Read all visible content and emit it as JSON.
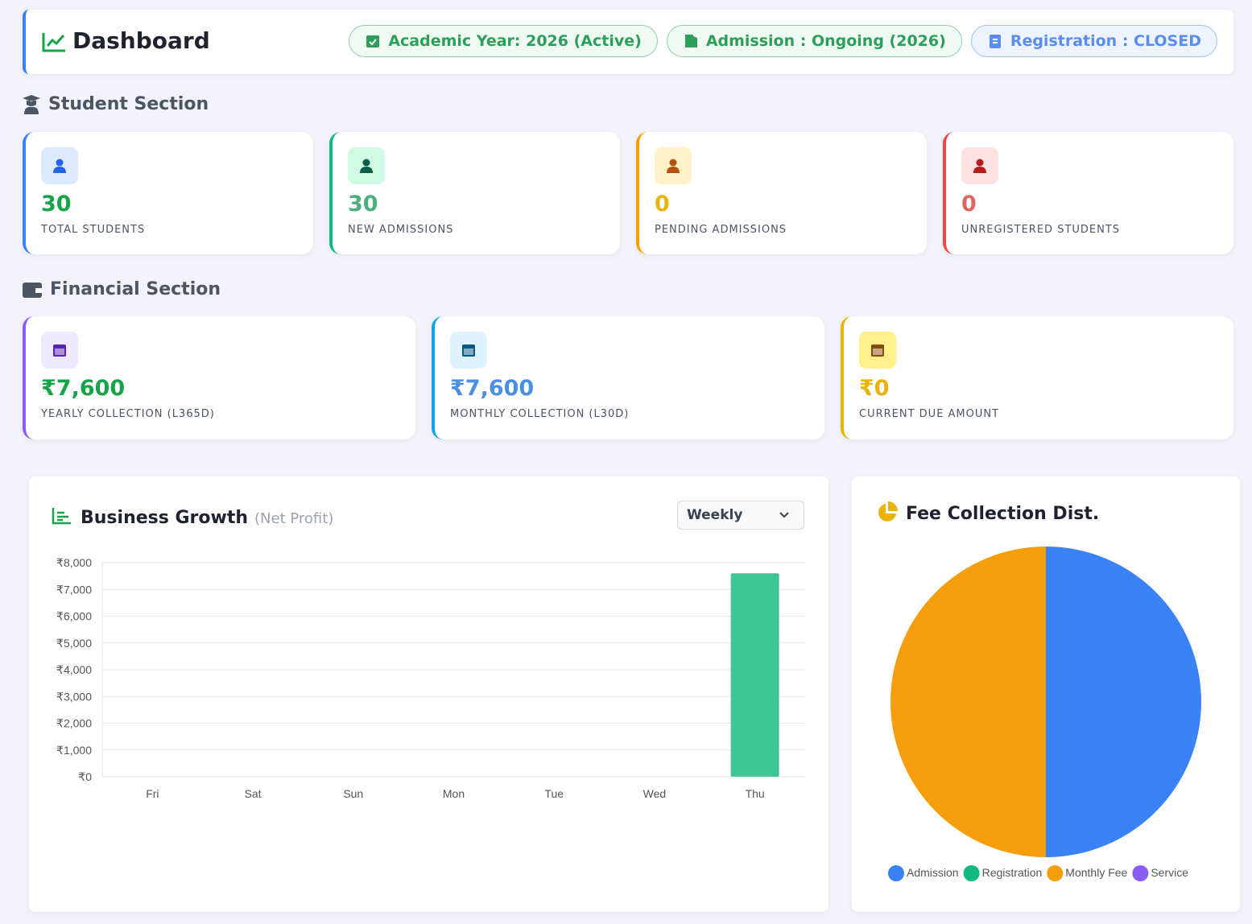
{
  "header": {
    "title": "Dashboard",
    "badges": [
      "Academic Year: 2026 (Active)",
      "Admission : Ongoing (2026)",
      "Registration : CLOSED"
    ]
  },
  "student_section": {
    "title": "Student Section",
    "cards": [
      {
        "value": "30",
        "label": "TOTAL STUDENTS"
      },
      {
        "value": "30",
        "label": "NEW ADMISSIONS"
      },
      {
        "value": "0",
        "label": "PENDING ADMISSIONS"
      },
      {
        "value": "0",
        "label": "UNREGISTERED STUDENTS"
      }
    ]
  },
  "financial_section": {
    "title": "Financial Section",
    "cards": [
      {
        "value": "₹7,600",
        "label": "YEARLY COLLECTION (L365D)"
      },
      {
        "value": "₹7,600",
        "label": "MONTHLY COLLECTION (L30D)"
      },
      {
        "value": "₹0",
        "label": "CURRENT DUE AMOUNT"
      }
    ]
  },
  "period_filter": "Weekly",
  "chart_data": [
    {
      "type": "bar",
      "title": "Business Growth",
      "subtitle": "(Net Profit)",
      "categories": [
        "Fri",
        "Sat",
        "Sun",
        "Mon",
        "Tue",
        "Wed",
        "Thu"
      ],
      "values": [
        0,
        0,
        0,
        0,
        0,
        0,
        7600
      ],
      "color": "#34c48f",
      "ylim": [
        0,
        8000
      ],
      "yticks": [
        {
          "value": 0,
          "label": "₹0"
        },
        {
          "value": 1000,
          "label": "₹1,000"
        },
        {
          "value": 2000,
          "label": "₹2,000"
        },
        {
          "value": 3000,
          "label": "₹3,000"
        },
        {
          "value": 4000,
          "label": "₹4,000"
        },
        {
          "value": 5000,
          "label": "₹5,000"
        },
        {
          "value": 6000,
          "label": "₹6,000"
        },
        {
          "value": 7000,
          "label": "₹7,000"
        },
        {
          "value": 8000,
          "label": "₹8,000"
        }
      ],
      "grid": true
    },
    {
      "type": "pie",
      "title": "Fee Collection Dist.",
      "series": [
        {
          "name": "Admission",
          "color": "#3b82f6",
          "values": [
            50
          ]
        },
        {
          "name": "Registration",
          "color": "#10b981",
          "values": [
            0
          ]
        },
        {
          "name": "Monthly Fee",
          "color": "#f59e0b",
          "values": [
            50
          ]
        },
        {
          "name": "Service",
          "color": "#8b5cf6",
          "values": [
            0
          ]
        }
      ],
      "legend": "bottom"
    }
  ]
}
